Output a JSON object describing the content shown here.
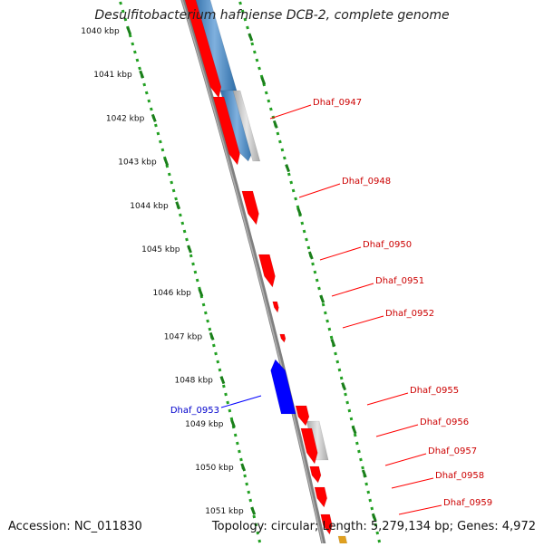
{
  "title": "Desulfitobacterium hafniense DCB-2, complete genome",
  "footer": {
    "accession": "Accession: NC_011830",
    "topology": "Topology: circular; Length: 5,279,134 bp; Genes: 4,972"
  },
  "colors": {
    "forward_cds": "#ff0000",
    "reverse_cds": "#0000ff",
    "rna_blue": "#3d7fc0",
    "gray_feature": "#b8b8b8",
    "backbone": "#808080",
    "ruler": "#22a022",
    "label_forward": "#cc0000",
    "label_reverse": "#0000cc"
  },
  "ruler_ticks": [
    "1040 kbp",
    "1041 kbp",
    "1042 kbp",
    "1043 kbp",
    "1044 kbp",
    "1045 kbp",
    "1046 kbp",
    "1047 kbp",
    "1048 kbp",
    "1049 kbp",
    "1050 kbp",
    "1051 kbp"
  ],
  "gene_labels_forward": [
    "Dhaf_0947",
    "Dhaf_0948",
    "Dhaf_0950",
    "Dhaf_0951",
    "Dhaf_0952",
    "Dhaf_0955",
    "Dhaf_0956",
    "Dhaf_0957",
    "Dhaf_0958",
    "Dhaf_0959"
  ],
  "gene_labels_reverse": [
    "Dhaf_0953"
  ]
}
